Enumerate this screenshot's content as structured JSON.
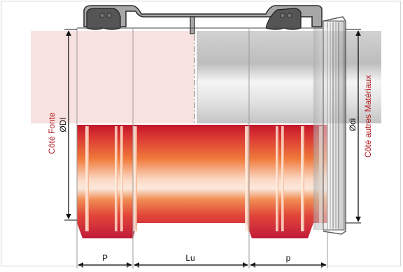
{
  "diagram": {
    "left_side_label": "Côté Fonte",
    "right_side_label": "Côté autres Matériaux",
    "dim_inner_left": "ØDI",
    "dim_inner_right": "Ødi",
    "dim_p_left": "P",
    "dim_lu": "Lu",
    "dim_p_right": "p",
    "colors": {
      "label_red": "#b0181e",
      "iron_red": "#d8262a",
      "iron_orange": "#f07a3a",
      "steel_grey": "#c9c9c9",
      "coupling_grey": "#8f8f8f",
      "pink_zone": "#f8e2e0"
    }
  }
}
